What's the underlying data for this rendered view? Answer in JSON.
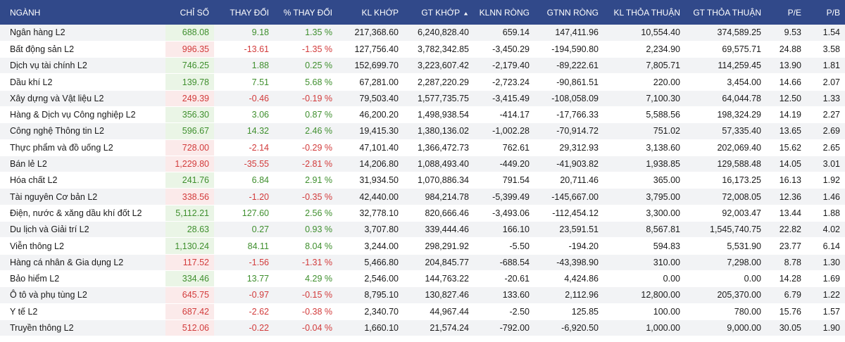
{
  "colors": {
    "header_bg": "#31498a",
    "up": "#3f8f2e",
    "down": "#d23b3b"
  },
  "headers": [
    "NGÀNH",
    "CHỈ SỐ",
    "THAY ĐỔI",
    "% THAY ĐỔI",
    "KL KHỚP",
    "GT KHỚP",
    "KLNN RÒNG",
    "GTNN RÒNG",
    "KL THỎA THUẬN",
    "GT THỎA THUẬN",
    "P/E",
    "P/B"
  ],
  "sort_icon": "sort-arrows-icon",
  "rows": [
    {
      "name": "Ngân hàng L2",
      "dir": "up",
      "cells": [
        "688.08",
        "9.18",
        "1.35 %",
        "217,368.60",
        "6,240,828.40",
        "659.14",
        "147,411.96",
        "10,554.40",
        "374,589.25",
        "9.53",
        "1.54"
      ]
    },
    {
      "name": "Bất động sản L2",
      "dir": "down",
      "cells": [
        "996.35",
        "-13.61",
        "-1.35 %",
        "127,756.40",
        "3,782,342.85",
        "-3,450.29",
        "-194,590.80",
        "2,234.90",
        "69,575.71",
        "24.88",
        "3.58"
      ]
    },
    {
      "name": "Dịch vụ tài chính L2",
      "dir": "up",
      "cells": [
        "746.25",
        "1.88",
        "0.25 %",
        "152,699.70",
        "3,223,607.42",
        "-2,179.40",
        "-89,222.61",
        "7,805.71",
        "114,259.45",
        "13.90",
        "1.81"
      ]
    },
    {
      "name": "Dầu khí L2",
      "dir": "up",
      "cells": [
        "139.78",
        "7.51",
        "5.68 %",
        "67,281.00",
        "2,287,220.29",
        "-2,723.24",
        "-90,861.51",
        "220.00",
        "3,454.00",
        "14.66",
        "2.07"
      ]
    },
    {
      "name": "Xây dựng và Vật liệu L2",
      "dir": "down",
      "cells": [
        "249.39",
        "-0.46",
        "-0.19 %",
        "79,503.40",
        "1,577,735.75",
        "-3,415.49",
        "-108,058.09",
        "7,100.30",
        "64,044.78",
        "12.50",
        "1.33"
      ]
    },
    {
      "name": "Hàng & Dịch vụ Công nghiệp L2",
      "dir": "up",
      "cells": [
        "356.30",
        "3.06",
        "0.87 %",
        "46,200.20",
        "1,498,938.54",
        "-414.17",
        "-17,766.33",
        "5,588.56",
        "198,324.29",
        "14.19",
        "2.27"
      ]
    },
    {
      "name": "Công nghệ Thông tin L2",
      "dir": "up",
      "cells": [
        "596.67",
        "14.32",
        "2.46 %",
        "19,415.30",
        "1,380,136.02",
        "-1,002.28",
        "-70,914.72",
        "751.02",
        "57,335.40",
        "13.65",
        "2.69"
      ]
    },
    {
      "name": "Thực phẩm và đồ uống L2",
      "dir": "down",
      "cells": [
        "728.00",
        "-2.14",
        "-0.29 %",
        "47,101.40",
        "1,366,472.73",
        "762.61",
        "29,312.93",
        "3,138.60",
        "202,069.40",
        "15.62",
        "2.65"
      ]
    },
    {
      "name": "Bán lẻ L2",
      "dir": "down",
      "cells": [
        "1,229.80",
        "-35.55",
        "-2.81 %",
        "14,206.80",
        "1,088,493.40",
        "-449.20",
        "-41,903.82",
        "1,938.85",
        "129,588.48",
        "14.05",
        "3.01"
      ]
    },
    {
      "name": "Hóa chất L2",
      "dir": "up",
      "cells": [
        "241.76",
        "6.84",
        "2.91 %",
        "31,934.50",
        "1,070,886.34",
        "791.54",
        "20,711.46",
        "365.00",
        "16,173.25",
        "16.13",
        "1.92"
      ]
    },
    {
      "name": "Tài nguyên Cơ bản L2",
      "dir": "down",
      "cells": [
        "338.56",
        "-1.20",
        "-0.35 %",
        "42,440.00",
        "984,214.78",
        "-5,399.49",
        "-145,667.00",
        "3,795.00",
        "72,008.05",
        "12.36",
        "1.46"
      ]
    },
    {
      "name": "Điện, nước & xăng dầu khí đốt L2",
      "dir": "up",
      "cells": [
        "5,112.21",
        "127.60",
        "2.56 %",
        "32,778.10",
        "820,666.46",
        "-3,493.06",
        "-112,454.12",
        "3,300.00",
        "92,003.47",
        "13.44",
        "1.88"
      ]
    },
    {
      "name": "Du lịch và Giải trí L2",
      "dir": "up",
      "cells": [
        "28.63",
        "0.27",
        "0.93 %",
        "3,707.80",
        "339,444.46",
        "166.10",
        "23,591.51",
        "8,567.81",
        "1,545,740.75",
        "22.82",
        "4.02"
      ]
    },
    {
      "name": "Viễn thông L2",
      "dir": "up",
      "cells": [
        "1,130.24",
        "84.11",
        "8.04 %",
        "3,244.00",
        "298,291.92",
        "-5.50",
        "-194.20",
        "594.83",
        "5,531.90",
        "23.77",
        "6.14"
      ]
    },
    {
      "name": "Hàng cá nhân & Gia dụng L2",
      "dir": "down",
      "cells": [
        "117.52",
        "-1.56",
        "-1.31 %",
        "5,466.80",
        "204,845.77",
        "-688.54",
        "-43,398.90",
        "310.00",
        "7,298.00",
        "8.78",
        "1.30"
      ]
    },
    {
      "name": "Bảo hiểm L2",
      "dir": "up",
      "cells": [
        "334.46",
        "13.77",
        "4.29 %",
        "2,546.00",
        "144,763.22",
        "-20.61",
        "4,424.86",
        "0.00",
        "0.00",
        "14.28",
        "1.69"
      ]
    },
    {
      "name": "Ô tô và phụ tùng L2",
      "dir": "down",
      "cells": [
        "645.75",
        "-0.97",
        "-0.15 %",
        "8,795.10",
        "130,827.46",
        "133.60",
        "2,112.96",
        "12,800.00",
        "205,370.00",
        "6.79",
        "1.22"
      ]
    },
    {
      "name": "Y tế L2",
      "dir": "down",
      "cells": [
        "687.42",
        "-2.62",
        "-0.38 %",
        "2,340.70",
        "44,967.44",
        "-2.50",
        "125.85",
        "100.00",
        "780.00",
        "15.76",
        "1.57"
      ]
    },
    {
      "name": "Truyền thông L2",
      "dir": "down",
      "cells": [
        "512.06",
        "-0.22",
        "-0.04 %",
        "1,660.10",
        "21,574.24",
        "-792.00",
        "-6,920.50",
        "1,000.00",
        "9,000.00",
        "30.05",
        "1.90"
      ]
    }
  ]
}
